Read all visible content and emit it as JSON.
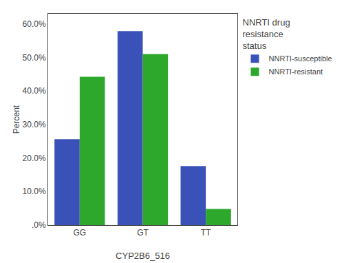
{
  "chart_data": {
    "type": "bar",
    "xlabel": "CYP2B6_516",
    "ylabel": "Percent",
    "categories": [
      "GG",
      "GT",
      "TT"
    ],
    "series": [
      {
        "name": "NNRTI-susceptible",
        "color": "#3a52b8",
        "values": [
          25.6,
          57.8,
          17.6
        ]
      },
      {
        "name": "NNRTI-resistant",
        "color": "#2da82d",
        "values": [
          44.2,
          51.0,
          4.8
        ]
      }
    ],
    "ylim": [
      0,
      63
    ],
    "yticks": [
      {
        "value": 0,
        "label": ".0%"
      },
      {
        "value": 10,
        "label": "10.0%"
      },
      {
        "value": 20,
        "label": "20.0%"
      },
      {
        "value": 30,
        "label": "30.0%"
      },
      {
        "value": 40,
        "label": "40.0%"
      },
      {
        "value": 50,
        "label": "50.0%"
      },
      {
        "value": 60,
        "label": "60.0%"
      }
    ],
    "legend_title": "NNRTI drug\nresistance\nstatus",
    "legend": "upper right outside",
    "grid": false,
    "data_labels": false
  }
}
